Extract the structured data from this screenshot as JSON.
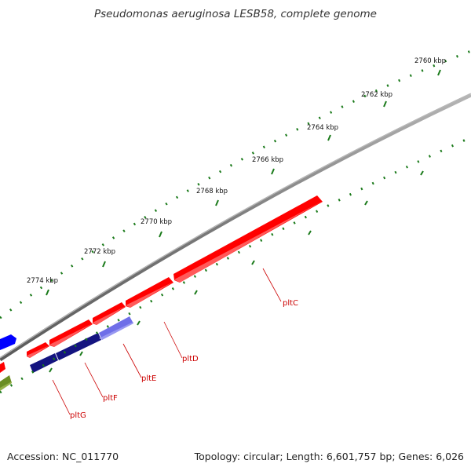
{
  "title": "Pseudomonas aeruginosa LESB58, complete genome",
  "footer": {
    "accession": "Accession: NC_011770",
    "summary": "Topology: circular; Length: 6,601,757 bp; Genes: 6,026"
  },
  "scale_labels": [
    "2760 kbp",
    "2762 kbp",
    "2764 kbp",
    "2766 kbp",
    "2768 kbp",
    "2770 kbp",
    "2772 kbp",
    "2774 kbp"
  ],
  "genes": [
    {
      "name": "pltC",
      "strand": "forward"
    },
    {
      "name": "pltD",
      "strand": "forward"
    },
    {
      "name": "pltE",
      "strand": "forward"
    },
    {
      "name": "pltF",
      "strand": "forward"
    },
    {
      "name": "pltG",
      "strand": "forward"
    }
  ],
  "colors": {
    "forward_gene": "#ff0000",
    "blast_track": "#1a1a8c",
    "neighbor_gene": "#0000ff",
    "backbone": "#888888",
    "tick": "#1a7a1a",
    "gene_label": "#cc0000"
  }
}
